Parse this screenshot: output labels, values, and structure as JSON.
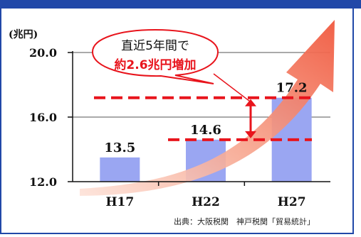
{
  "unit_label": "(兆円)",
  "source_note": "出典：大阪税関　神戸税関「貿易統計」",
  "callout": {
    "line1": "直近5年間で",
    "line2": "約2.6兆円増加"
  },
  "colors": {
    "bar": "#9aa6f2",
    "frame": "#2148a8",
    "arrow": "#f26a4f",
    "dash": "#e8141c"
  },
  "chart_data": {
    "type": "bar",
    "categories": [
      "H17",
      "H22",
      "H27"
    ],
    "values": [
      13.5,
      14.6,
      17.2
    ],
    "value_labels": [
      "13.5",
      "14.6",
      "17.2"
    ],
    "title": "",
    "xlabel": "",
    "ylabel": "(兆円)",
    "ylim": [
      12.0,
      20.0
    ],
    "yticks": [
      12.0,
      16.0,
      20.0
    ],
    "ytick_labels": [
      "12.0",
      "16.0",
      "20.0"
    ],
    "grid": true,
    "annotations": [
      "直近5年間で",
      "約2.6兆円増加"
    ]
  }
}
